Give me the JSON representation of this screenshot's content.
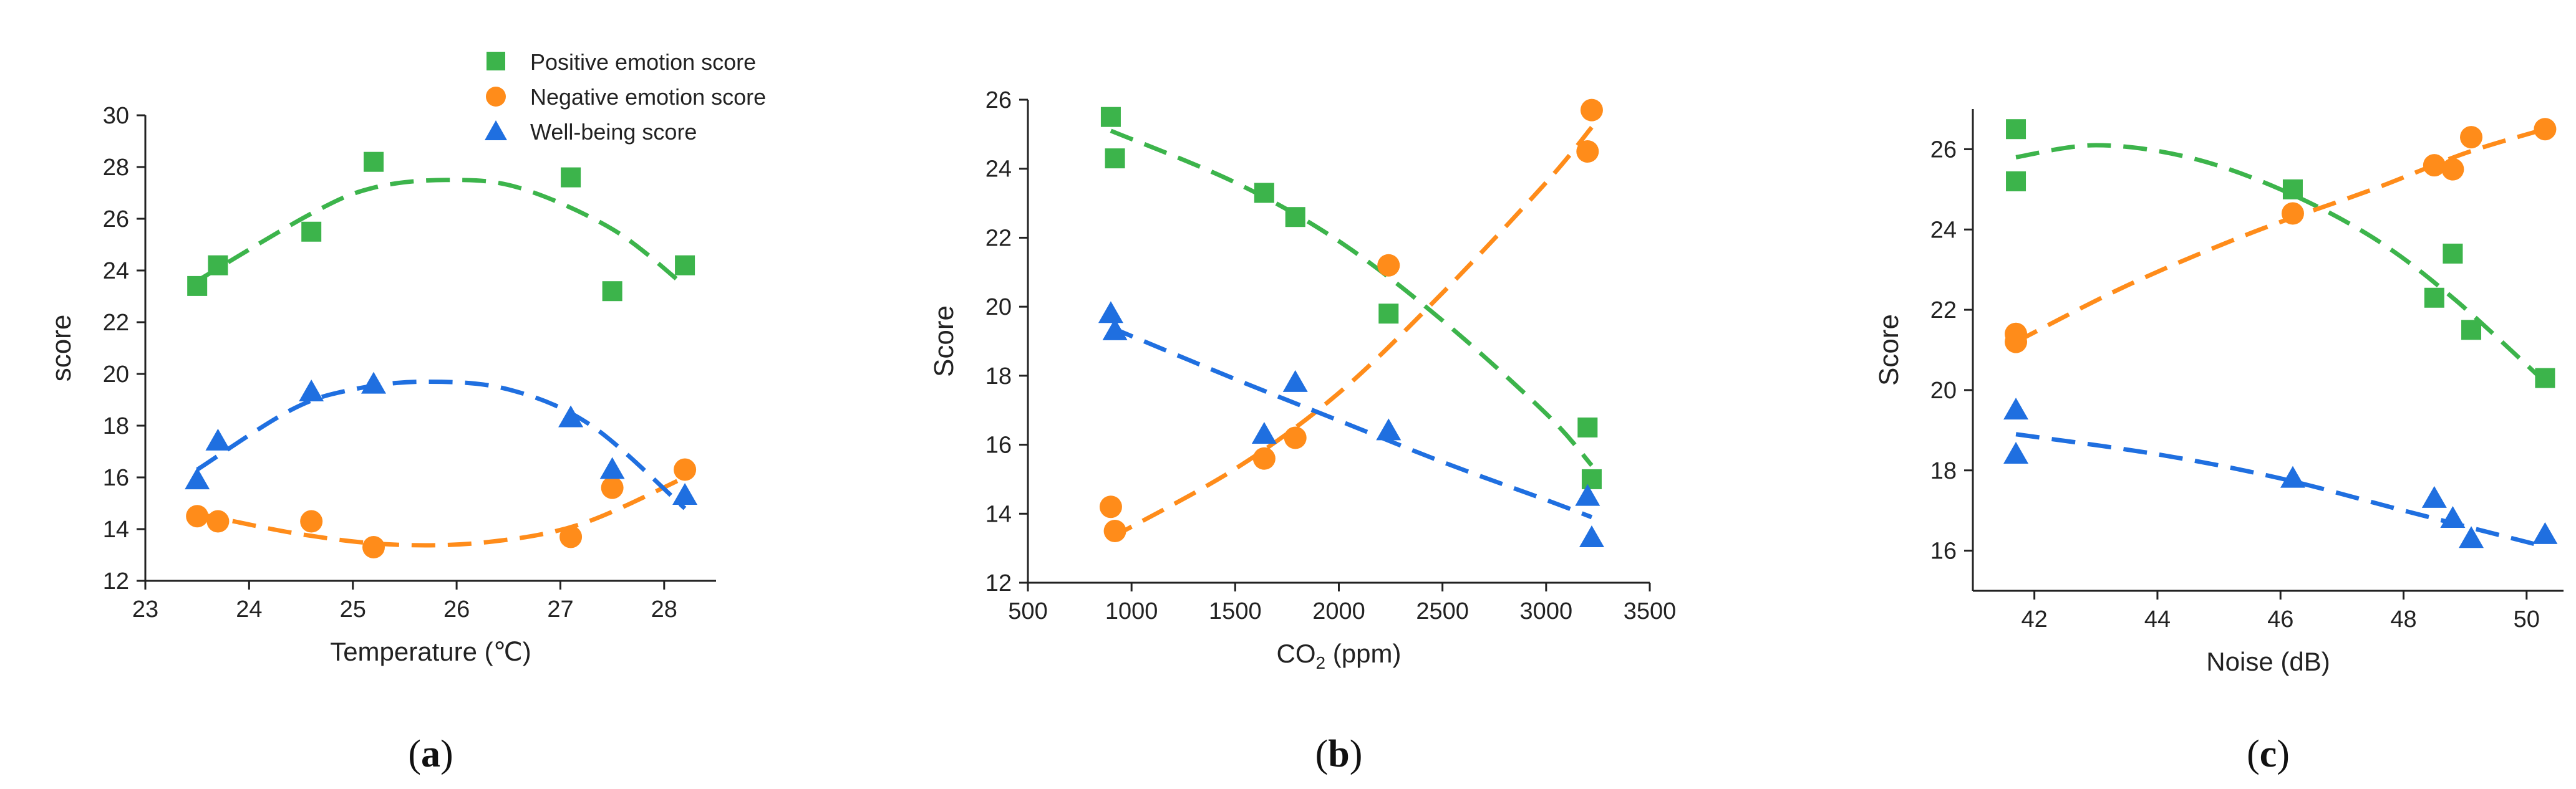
{
  "legend": {
    "items": [
      {
        "label": "Positive emotion score",
        "series": "pos"
      },
      {
        "label": "Negative emotion score",
        "series": "neg"
      },
      {
        "label": "Well-being score",
        "series": "wb"
      }
    ]
  },
  "colors": {
    "pos": "#3cb44b",
    "neg": "#ff8c1a",
    "wb": "#1f6fe0",
    "axis": "#222222"
  },
  "chart_data": [
    {
      "id": "a",
      "type": "scatter",
      "panel_label": "(a)",
      "xlabel": "Temperature (℃)",
      "ylabel": "score",
      "xlim": [
        23,
        28.5
      ],
      "ylim": [
        12,
        30
      ],
      "xticks": [
        23,
        24,
        25,
        26,
        27,
        28
      ],
      "yticks": [
        12,
        14,
        16,
        18,
        20,
        22,
        24,
        26,
        28,
        30
      ],
      "series": [
        {
          "key": "pos",
          "name": "Positive emotion score",
          "marker": "square",
          "x": [
            23.5,
            23.7,
            24.6,
            25.2,
            27.1,
            27.5,
            28.2
          ],
          "y": [
            23.4,
            24.2,
            25.5,
            28.2,
            27.6,
            23.2,
            24.2
          ],
          "fit": {
            "x_from": 23.5,
            "x_to": 28.2,
            "points": [
              [
                23.5,
                23.6
              ],
              [
                24.6,
                26.2
              ],
              [
                25.2,
                27.2
              ],
              [
                25.9,
                27.5
              ],
              [
                26.6,
                27.2
              ],
              [
                27.5,
                25.6
              ],
              [
                28.2,
                23.4
              ]
            ]
          }
        },
        {
          "key": "neg",
          "name": "Negative emotion score",
          "marker": "circle",
          "x": [
            23.5,
            23.7,
            24.6,
            25.2,
            27.1,
            27.5,
            28.2
          ],
          "y": [
            14.5,
            14.3,
            14.3,
            13.3,
            13.7,
            15.6,
            16.3
          ],
          "fit": {
            "x_from": 23.5,
            "x_to": 28.2,
            "points": [
              [
                23.5,
                14.6
              ],
              [
                24.5,
                13.8
              ],
              [
                25.4,
                13.4
              ],
              [
                26.3,
                13.5
              ],
              [
                27.2,
                14.2
              ],
              [
                28.2,
                16.0
              ]
            ]
          }
        },
        {
          "key": "wb",
          "name": "Well-being score",
          "marker": "triangle",
          "x": [
            23.5,
            23.7,
            24.6,
            25.2,
            27.1,
            27.5,
            28.2
          ],
          "y": [
            15.9,
            17.4,
            19.3,
            19.6,
            18.3,
            16.3,
            15.3
          ],
          "fit": {
            "x_from": 23.5,
            "x_to": 28.2,
            "points": [
              [
                23.5,
                16.3
              ],
              [
                24.4,
                18.6
              ],
              [
                25.0,
                19.4
              ],
              [
                25.7,
                19.7
              ],
              [
                26.5,
                19.4
              ],
              [
                27.3,
                18.0
              ],
              [
                28.2,
                14.8
              ]
            ]
          }
        }
      ]
    },
    {
      "id": "b",
      "type": "scatter",
      "panel_label": "(b)",
      "xlabel_main": "CO",
      "xlabel_sub": "2",
      "xlabel_rest": " (ppm)",
      "ylabel": "Score",
      "xlim": [
        500,
        3500
      ],
      "ylim": [
        12,
        26
      ],
      "xticks": [
        500,
        1000,
        1500,
        2000,
        2500,
        3000,
        3500
      ],
      "yticks": [
        12,
        14,
        16,
        18,
        20,
        22,
        24,
        26
      ],
      "series": [
        {
          "key": "pos",
          "name": "Positive emotion score",
          "marker": "square",
          "x": [
            900,
            920,
            1640,
            1790,
            2240,
            3200,
            3220
          ],
          "y": [
            25.5,
            24.3,
            23.3,
            22.6,
            19.8,
            16.5,
            15.0
          ],
          "fit": {
            "x_from": 900,
            "x_to": 3220,
            "points": [
              [
                900,
                25.1
              ],
              [
                1500,
                23.6
              ],
              [
                2000,
                21.9
              ],
              [
                2500,
                19.6
              ],
              [
                3000,
                16.9
              ],
              [
                3220,
                15.4
              ]
            ]
          }
        },
        {
          "key": "neg",
          "name": "Negative emotion score",
          "marker": "circle",
          "x": [
            900,
            920,
            1640,
            1790,
            2240,
            3200,
            3220
          ],
          "y": [
            14.2,
            13.5,
            15.6,
            16.2,
            21.2,
            24.5,
            25.7
          ],
          "fit": {
            "x_from": 900,
            "x_to": 3220,
            "points": [
              [
                900,
                13.3
              ],
              [
                1500,
                15.3
              ],
              [
                2000,
                17.5
              ],
              [
                2500,
                20.4
              ],
              [
                3000,
                23.6
              ],
              [
                3220,
                25.2
              ]
            ]
          }
        },
        {
          "key": "wb",
          "name": "Well-being score",
          "marker": "triangle",
          "x": [
            900,
            920,
            1640,
            1790,
            2240,
            3200,
            3220
          ],
          "y": [
            19.8,
            19.3,
            16.3,
            17.8,
            16.4,
            14.5,
            13.3
          ],
          "fit": {
            "x_from": 900,
            "x_to": 3220,
            "points": [
              [
                900,
                19.4
              ],
              [
                1500,
                17.9
              ],
              [
                2000,
                16.7
              ],
              [
                2500,
                15.5
              ],
              [
                3000,
                14.4
              ],
              [
                3220,
                13.9
              ]
            ]
          }
        }
      ]
    },
    {
      "id": "c",
      "type": "scatter",
      "panel_label": "(c)",
      "xlabel": "Noise (dB)",
      "ylabel": "Score",
      "xlim": [
        41,
        50.6
      ],
      "ylim": [
        15,
        27
      ],
      "xticks": [
        42,
        44,
        46,
        48,
        50
      ],
      "yticks": [
        16,
        18,
        20,
        22,
        24,
        26
      ],
      "series": [
        {
          "key": "pos",
          "name": "Positive emotion score",
          "marker": "square",
          "x": [
            41.7,
            41.7,
            46.2,
            48.5,
            48.8,
            49.1,
            50.3
          ],
          "y": [
            26.5,
            25.2,
            25.0,
            22.3,
            23.4,
            21.5,
            20.3
          ],
          "fit": {
            "x_from": 41.7,
            "x_to": 50.3,
            "points": [
              [
                41.7,
                25.8
              ],
              [
                43.0,
                26.1
              ],
              [
                44.5,
                25.8
              ],
              [
                46.0,
                25.0
              ],
              [
                47.5,
                23.8
              ],
              [
                48.8,
                22.3
              ],
              [
                50.3,
                20.2
              ]
            ]
          }
        },
        {
          "key": "neg",
          "name": "Negative emotion score",
          "marker": "circle",
          "x": [
            41.7,
            41.7,
            46.2,
            48.5,
            48.8,
            49.1,
            50.3
          ],
          "y": [
            21.4,
            21.2,
            24.4,
            25.6,
            25.5,
            26.3,
            26.5
          ],
          "fit": {
            "x_from": 41.7,
            "x_to": 50.3,
            "points": [
              [
                41.7,
                21.2
              ],
              [
                43.5,
                22.6
              ],
              [
                45.5,
                23.9
              ],
              [
                47.5,
                25.0
              ],
              [
                49.0,
                25.9
              ],
              [
                50.3,
                26.5
              ]
            ]
          }
        },
        {
          "key": "wb",
          "name": "Well-being score",
          "marker": "triangle",
          "x": [
            41.7,
            41.7,
            46.2,
            48.5,
            48.8,
            49.1,
            50.3
          ],
          "y": [
            19.5,
            18.4,
            17.8,
            17.3,
            16.8,
            16.3,
            16.4
          ],
          "fit": {
            "x_from": 41.7,
            "x_to": 50.3,
            "points": [
              [
                41.7,
                18.9
              ],
              [
                44.0,
                18.4
              ],
              [
                46.0,
                17.8
              ],
              [
                48.0,
                17.0
              ],
              [
                50.3,
                16.1
              ]
            ]
          }
        }
      ]
    }
  ]
}
